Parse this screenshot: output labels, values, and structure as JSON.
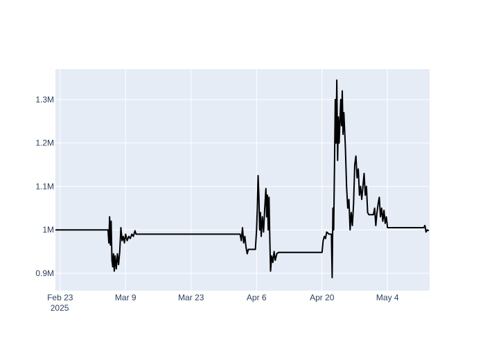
{
  "chart_data": {
    "type": "line",
    "title": "",
    "xlabel": "",
    "ylabel": "",
    "grid": true,
    "legend": false,
    "colors": {
      "plot_bg": "#e5ecf6",
      "grid": "#ffffff",
      "line": "#000000",
      "tick_text": "#2a3f5f"
    },
    "xlim": [
      "2025-02-22",
      "2025-05-13"
    ],
    "ylim": [
      860000,
      1370000
    ],
    "x_ticks": [
      {
        "value": "2025-02-23",
        "label": "Feb 23",
        "sublabel": "2025"
      },
      {
        "value": "2025-03-09",
        "label": "Mar 9"
      },
      {
        "value": "2025-03-23",
        "label": "Mar 23"
      },
      {
        "value": "2025-04-06",
        "label": "Apr 6"
      },
      {
        "value": "2025-04-20",
        "label": "Apr 20"
      },
      {
        "value": "2025-05-04",
        "label": "May 4"
      }
    ],
    "y_ticks": [
      {
        "value": 900000,
        "label": "0.9M"
      },
      {
        "value": 1000000,
        "label": "1M"
      },
      {
        "value": 1100000,
        "label": "1.1M"
      },
      {
        "value": 1200000,
        "label": "1.2M"
      },
      {
        "value": 1300000,
        "label": "1.3M"
      }
    ],
    "series": [
      {
        "points": [
          [
            "2025-02-22T00:00",
            1000000
          ],
          [
            "2025-03-05T06:00",
            1000000
          ],
          [
            "2025-03-05T10:00",
            970000
          ],
          [
            "2025-03-05T14:00",
            1030000
          ],
          [
            "2025-03-05T18:00",
            965000
          ],
          [
            "2025-03-05T22:00",
            1020000
          ],
          [
            "2025-03-06T02:00",
            930000
          ],
          [
            "2025-03-06T06:00",
            915000
          ],
          [
            "2025-03-06T10:00",
            945000
          ],
          [
            "2025-03-06T14:00",
            905000
          ],
          [
            "2025-03-06T18:00",
            940000
          ],
          [
            "2025-03-07T00:00",
            910000
          ],
          [
            "2025-03-07T06:00",
            945000
          ],
          [
            "2025-03-07T12:00",
            920000
          ],
          [
            "2025-03-07T18:00",
            950000
          ],
          [
            "2025-03-08T00:00",
            1005000
          ],
          [
            "2025-03-08T06:00",
            975000
          ],
          [
            "2025-03-08T12:00",
            985000
          ],
          [
            "2025-03-08T18:00",
            970000
          ],
          [
            "2025-03-09T00:00",
            990000
          ],
          [
            "2025-03-09T08:00",
            975000
          ],
          [
            "2025-03-09T16:00",
            985000
          ],
          [
            "2025-03-10T00:00",
            980000
          ],
          [
            "2025-03-10T08:00",
            990000
          ],
          [
            "2025-03-10T16:00",
            985000
          ],
          [
            "2025-03-11T00:00",
            998000
          ],
          [
            "2025-03-11T06:00",
            990000
          ],
          [
            "2025-04-02T12:00",
            990000
          ],
          [
            "2025-04-02T18:00",
            975000
          ],
          [
            "2025-04-03T00:00",
            1005000
          ],
          [
            "2025-04-03T06:00",
            970000
          ],
          [
            "2025-04-03T12:00",
            985000
          ],
          [
            "2025-04-03T18:00",
            960000
          ],
          [
            "2025-04-04T00:00",
            945000
          ],
          [
            "2025-04-04T06:00",
            955000
          ],
          [
            "2025-04-05T18:00",
            955000
          ],
          [
            "2025-04-06T00:00",
            1000000
          ],
          [
            "2025-04-06T04:00",
            1050000
          ],
          [
            "2025-04-06T08:00",
            1125000
          ],
          [
            "2025-04-06T12:00",
            1080000
          ],
          [
            "2025-04-06T16:00",
            1000000
          ],
          [
            "2025-04-06T20:00",
            1040000
          ],
          [
            "2025-04-07T00:00",
            985000
          ],
          [
            "2025-04-07T06:00",
            1030000
          ],
          [
            "2025-04-07T12:00",
            995000
          ],
          [
            "2025-04-07T18:00",
            1050000
          ],
          [
            "2025-04-08T00:00",
            1095000
          ],
          [
            "2025-04-08T04:00",
            1030000
          ],
          [
            "2025-04-08T08:00",
            1080000
          ],
          [
            "2025-04-08T12:00",
            1000000
          ],
          [
            "2025-04-08T16:00",
            1075000
          ],
          [
            "2025-04-08T20:00",
            980000
          ],
          [
            "2025-04-09T00:00",
            905000
          ],
          [
            "2025-04-09T06:00",
            940000
          ],
          [
            "2025-04-09T12:00",
            925000
          ],
          [
            "2025-04-09T18:00",
            950000
          ],
          [
            "2025-04-10T00:00",
            930000
          ],
          [
            "2025-04-10T08:00",
            945000
          ],
          [
            "2025-04-10T16:00",
            948000
          ],
          [
            "2025-04-20T00:00",
            948000
          ],
          [
            "2025-04-20T06:00",
            975000
          ],
          [
            "2025-04-20T12:00",
            985000
          ],
          [
            "2025-04-20T18:00",
            980000
          ],
          [
            "2025-04-21T00:00",
            995000
          ],
          [
            "2025-04-21T12:00",
            990000
          ],
          [
            "2025-04-22T00:00",
            990000
          ],
          [
            "2025-04-22T04:00",
            890000
          ],
          [
            "2025-04-22T08:00",
            1050000
          ],
          [
            "2025-04-22T12:00",
            1000000
          ],
          [
            "2025-04-22T16:00",
            1150000
          ],
          [
            "2025-04-22T20:00",
            1300000
          ],
          [
            "2025-04-23T00:00",
            1200000
          ],
          [
            "2025-04-23T04:00",
            1345000
          ],
          [
            "2025-04-23T08:00",
            1160000
          ],
          [
            "2025-04-23T12:00",
            1260000
          ],
          [
            "2025-04-23T16:00",
            1200000
          ],
          [
            "2025-04-24T00:00",
            1300000
          ],
          [
            "2025-04-24T04:00",
            1240000
          ],
          [
            "2025-04-24T08:00",
            1320000
          ],
          [
            "2025-04-24T12:00",
            1220000
          ],
          [
            "2025-04-24T16:00",
            1270000
          ],
          [
            "2025-04-25T00:00",
            1190000
          ],
          [
            "2025-04-25T06:00",
            1100000
          ],
          [
            "2025-04-25T12:00",
            1050000
          ],
          [
            "2025-04-25T18:00",
            1070000
          ],
          [
            "2025-04-26T00:00",
            1000000
          ],
          [
            "2025-04-26T06:00",
            1040000
          ],
          [
            "2025-04-26T12:00",
            1010000
          ],
          [
            "2025-04-26T18:00",
            1060000
          ],
          [
            "2025-04-27T00:00",
            1150000
          ],
          [
            "2025-04-27T06:00",
            1170000
          ],
          [
            "2025-04-27T12:00",
            1120000
          ],
          [
            "2025-04-27T18:00",
            1140000
          ],
          [
            "2025-04-28T00:00",
            1080000
          ],
          [
            "2025-04-28T06:00",
            1100000
          ],
          [
            "2025-04-28T12:00",
            1070000
          ],
          [
            "2025-04-29T00:00",
            1130000
          ],
          [
            "2025-04-29T06:00",
            1080000
          ],
          [
            "2025-04-29T12:00",
            1100000
          ],
          [
            "2025-04-29T18:00",
            1040000
          ],
          [
            "2025-04-30T00:00",
            1035000
          ],
          [
            "2025-05-01T00:00",
            1035000
          ],
          [
            "2025-05-01T06:00",
            1050000
          ],
          [
            "2025-05-01T12:00",
            1010000
          ],
          [
            "2025-05-01T18:00",
            1040000
          ],
          [
            "2025-05-02T00:00",
            1060000
          ],
          [
            "2025-05-02T06:00",
            1075000
          ],
          [
            "2025-05-02T12:00",
            1030000
          ],
          [
            "2025-05-02T18:00",
            1050000
          ],
          [
            "2025-05-03T00:00",
            1020000
          ],
          [
            "2025-05-03T06:00",
            1045000
          ],
          [
            "2025-05-03T12:00",
            1015000
          ],
          [
            "2025-05-03T18:00",
            1030000
          ],
          [
            "2025-05-04T00:00",
            1005000
          ],
          [
            "2025-05-11T18:00",
            1005000
          ],
          [
            "2025-05-12T00:00",
            1010000
          ],
          [
            "2025-05-12T06:00",
            995000
          ],
          [
            "2025-05-12T12:00",
            1000000
          ],
          [
            "2025-05-12T20:00",
            998000
          ]
        ]
      }
    ]
  }
}
